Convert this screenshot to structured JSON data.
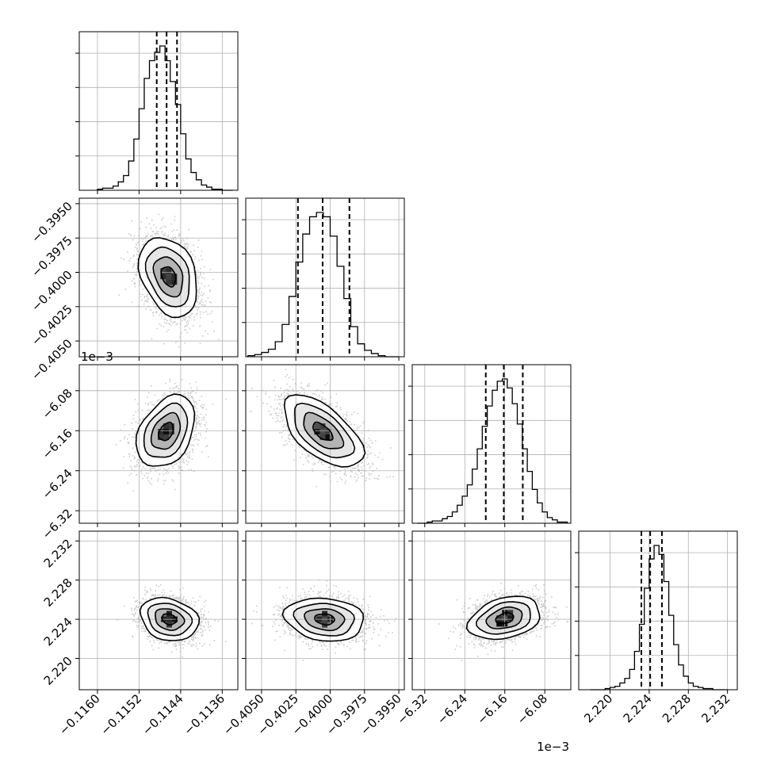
{
  "chart_data": {
    "type": "corner",
    "title": "",
    "parameters": [
      {
        "index": 0,
        "ticks": [
          -0.116,
          -0.1152,
          -0.1144,
          -0.1136
        ],
        "tick_labels": [
          "−0.1160",
          "−0.1152",
          "−0.1144",
          "−0.1136"
        ],
        "range": [
          -0.11635,
          -0.1133
        ],
        "offset_label": ""
      },
      {
        "index": 1,
        "ticks": [
          -0.405,
          -0.4025,
          -0.4,
          -0.3975,
          -0.395
        ],
        "tick_labels": [
          "−0.4050",
          "−0.4025",
          "−0.4000",
          "−0.3975",
          "−0.3950"
        ],
        "range": [
          -0.40615,
          -0.3946
        ],
        "offset_label": ""
      },
      {
        "index": 2,
        "ticks": [
          -6.32,
          -6.24,
          -6.16,
          -6.08
        ],
        "tick_labels": [
          "−6.32",
          "−6.24",
          "−6.16",
          "−6.08"
        ],
        "range": [
          -6.345,
          -6.028
        ],
        "offset_label": "1e−3"
      },
      {
        "index": 3,
        "ticks": [
          2.22,
          2.224,
          2.228,
          2.232
        ],
        "tick_labels": [
          "2.220",
          "2.224",
          "2.228",
          "2.232"
        ],
        "range": [
          2.2168,
          2.233
        ],
        "offset_label": ""
      }
    ],
    "histograms": [
      {
        "param": 0,
        "bin_edges": [
          -0.116,
          -0.1159,
          -0.1158,
          -0.1157,
          -0.1156,
          -0.1155,
          -0.1154,
          -0.1153,
          -0.1152,
          -0.1151,
          -0.115,
          -0.1149,
          -0.1148,
          -0.1147,
          -0.1146,
          -0.1145,
          -0.1144,
          -0.1143,
          -0.1142,
          -0.1141,
          -0.114,
          -0.1139,
          -0.1138,
          -0.1137,
          -0.1136,
          -0.1135,
          -0.1134
        ],
        "counts": [
          1,
          2,
          2,
          4,
          8,
          14,
          28,
          49,
          78,
          107,
          124,
          132,
          138,
          124,
          104,
          82,
          54,
          30,
          17,
          10,
          5,
          3,
          1,
          1,
          0,
          0
        ],
        "quantiles": [
          -0.11486,
          -0.11467,
          -0.11447
        ]
      },
      {
        "param": 1,
        "bin_edges": [
          -0.406,
          -0.4055,
          -0.405,
          -0.4045,
          -0.404,
          -0.4035,
          -0.403,
          -0.4025,
          -0.402,
          -0.4015,
          -0.401,
          -0.4005,
          -0.4,
          -0.3995,
          -0.399,
          -0.3985,
          -0.398,
          -0.3975,
          -0.397,
          -0.3965,
          -0.396,
          -0.3955,
          -0.395
        ],
        "counts": [
          1,
          2,
          4,
          7,
          14,
          30,
          56,
          88,
          114,
          130,
          134,
          130,
          112,
          84,
          54,
          28,
          12,
          6,
          3,
          1,
          0,
          0
        ],
        "quantiles": [
          -0.40235,
          -0.40055,
          -0.3986
        ]
      },
      {
        "param": 2,
        "bin_edges": [
          -6.335,
          -6.325,
          -6.315,
          -6.305,
          -6.295,
          -6.285,
          -6.275,
          -6.265,
          -6.255,
          -6.245,
          -6.235,
          -6.225,
          -6.215,
          -6.205,
          -6.195,
          -6.185,
          -6.175,
          -6.165,
          -6.155,
          -6.145,
          -6.135,
          -6.125,
          -6.115,
          -6.105,
          -6.095,
          -6.085,
          -6.075,
          -6.065,
          -6.055,
          -6.045,
          -6.035
        ],
        "counts": [
          0,
          0,
          1,
          2,
          2,
          4,
          6,
          10,
          16,
          24,
          34,
          48,
          66,
          86,
          104,
          118,
          126,
          128,
          120,
          106,
          88,
          66,
          46,
          30,
          18,
          10,
          5,
          3,
          1,
          1
        ],
        "quantiles": [
          -6.198,
          -6.162,
          -6.124
        ]
      },
      {
        "param": 3,
        "bin_edges": [
          2.218,
          2.2185,
          2.219,
          2.2195,
          2.22,
          2.2205,
          2.221,
          2.2215,
          2.222,
          2.2225,
          2.223,
          2.2235,
          2.224,
          2.2245,
          2.225,
          2.2255,
          2.226,
          2.2265,
          2.227,
          2.2275,
          2.228,
          2.2285,
          2.229,
          2.2295,
          2.23,
          2.2305,
          2.231,
          2.2315,
          2.232
        ],
        "counts": [
          0,
          0,
          0,
          1,
          2,
          3,
          6,
          10,
          18,
          34,
          58,
          90,
          116,
          128,
          120,
          96,
          66,
          40,
          22,
          12,
          6,
          3,
          2,
          1,
          1,
          0,
          0,
          0
        ],
        "quantiles": [
          2.2232,
          2.2241,
          2.2253
        ]
      }
    ],
    "panels_2d": [
      {
        "x": 0,
        "y": 1,
        "center": [
          -0.11463,
          -0.4003
        ],
        "sd": [
          0.00028,
          0.00145
        ],
        "corr": -0.3
      },
      {
        "x": 0,
        "y": 2,
        "center": [
          -0.11468,
          -6.162
        ],
        "sd": [
          0.00028,
          0.036
        ],
        "corr": 0.35
      },
      {
        "x": 1,
        "y": 2,
        "center": [
          -0.40055,
          -6.162
        ],
        "sd": [
          0.00145,
          0.036
        ],
        "corr": -0.6
      },
      {
        "x": 0,
        "y": 3,
        "center": [
          -0.11462,
          2.224
        ],
        "sd": [
          0.00028,
          0.0011
        ],
        "corr": -0.2
      },
      {
        "x": 1,
        "y": 3,
        "center": [
          -0.4004,
          2.224
        ],
        "sd": [
          0.00145,
          0.0011
        ],
        "corr": -0.15
      },
      {
        "x": 2,
        "y": 3,
        "center": [
          -6.16,
          2.2241
        ],
        "sd": [
          0.036,
          0.0011
        ],
        "corr": 0.3
      }
    ],
    "contour_levels_sigma": [
      0.5,
      1.0,
      1.5,
      2.0
    ],
    "grid": true,
    "colors": {
      "hist": "#000000",
      "points": "#8f8f8f",
      "contour": "#000000",
      "grid": "#b0b0b0"
    }
  }
}
